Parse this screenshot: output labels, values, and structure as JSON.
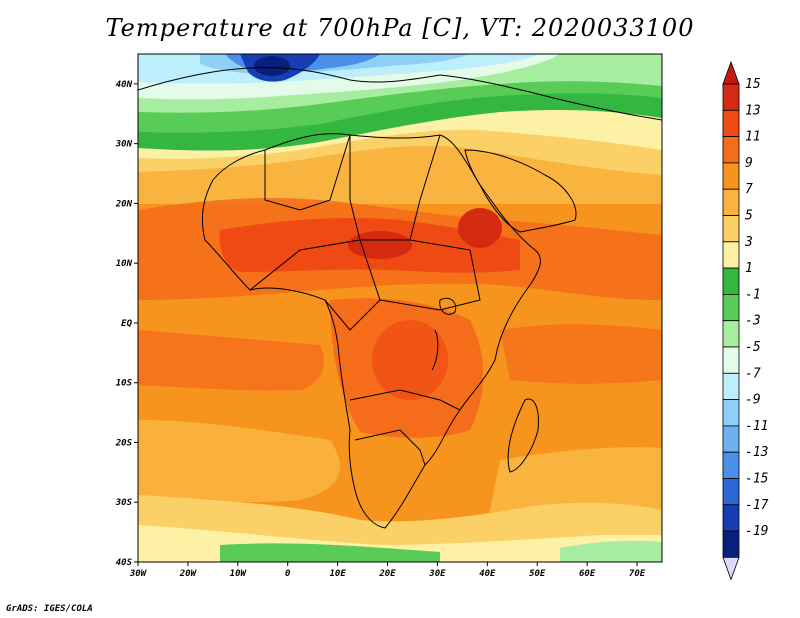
{
  "title": "Temperature at 700hPa [C], VT: 2020033100",
  "credit": "GrADS: IGES/COLA",
  "map": {
    "lon_range": [
      -30,
      75
    ],
    "lat_range": [
      -40,
      45
    ],
    "lat_ticks": [
      {
        "lat": 40,
        "label": "40N"
      },
      {
        "lat": 30,
        "label": "30N"
      },
      {
        "lat": 20,
        "label": "20N"
      },
      {
        "lat": 10,
        "label": "10N"
      },
      {
        "lat": 0,
        "label": "EQ"
      },
      {
        "lat": -10,
        "label": "10S"
      },
      {
        "lat": -20,
        "label": "20S"
      },
      {
        "lat": -30,
        "label": "30S"
      },
      {
        "lat": -40,
        "label": "40S"
      }
    ],
    "lon_ticks": [
      {
        "lon": -30,
        "label": "30W"
      },
      {
        "lon": -20,
        "label": "20W"
      },
      {
        "lon": -10,
        "label": "10W"
      },
      {
        "lon": 0,
        "label": "0"
      },
      {
        "lon": 10,
        "label": "10E"
      },
      {
        "lon": 20,
        "label": "20E"
      },
      {
        "lon": 30,
        "label": "30E"
      },
      {
        "lon": 40,
        "label": "40E"
      },
      {
        "lon": 50,
        "label": "50E"
      },
      {
        "lon": 60,
        "label": "60E"
      },
      {
        "lon": 70,
        "label": "70E"
      }
    ]
  },
  "colorbar": {
    "levels": [
      {
        "label": "15",
        "color": "#d42a12"
      },
      {
        "label": "13",
        "color": "#f04a14"
      },
      {
        "label": "11",
        "color": "#f56c1a"
      },
      {
        "label": "9",
        "color": "#f7941e"
      },
      {
        "label": "7",
        "color": "#f9b43f"
      },
      {
        "label": "5",
        "color": "#fbd067"
      },
      {
        "label": "3",
        "color": "#fdf1a6"
      },
      {
        "label": "1",
        "color": "#34b741"
      },
      {
        "label": "-1",
        "color": "#58cc56"
      },
      {
        "label": "-3",
        "color": "#a6eda0"
      },
      {
        "label": "-5",
        "color": "#e3fbe8"
      },
      {
        "label": "-7",
        "color": "#bdeefc"
      },
      {
        "label": "-9",
        "color": "#8fd1f6"
      },
      {
        "label": "-11",
        "color": "#6cb2f1"
      },
      {
        "label": "-13",
        "color": "#4a8fe8"
      },
      {
        "label": "-15",
        "color": "#2c68d6"
      },
      {
        "label": "-17",
        "color": "#163eb2"
      },
      {
        "label": "-19",
        "color": "#0a1f7a"
      }
    ],
    "top_arrow_color": "#c6180e",
    "bottom_arrow_color": "#dcdcfa"
  }
}
